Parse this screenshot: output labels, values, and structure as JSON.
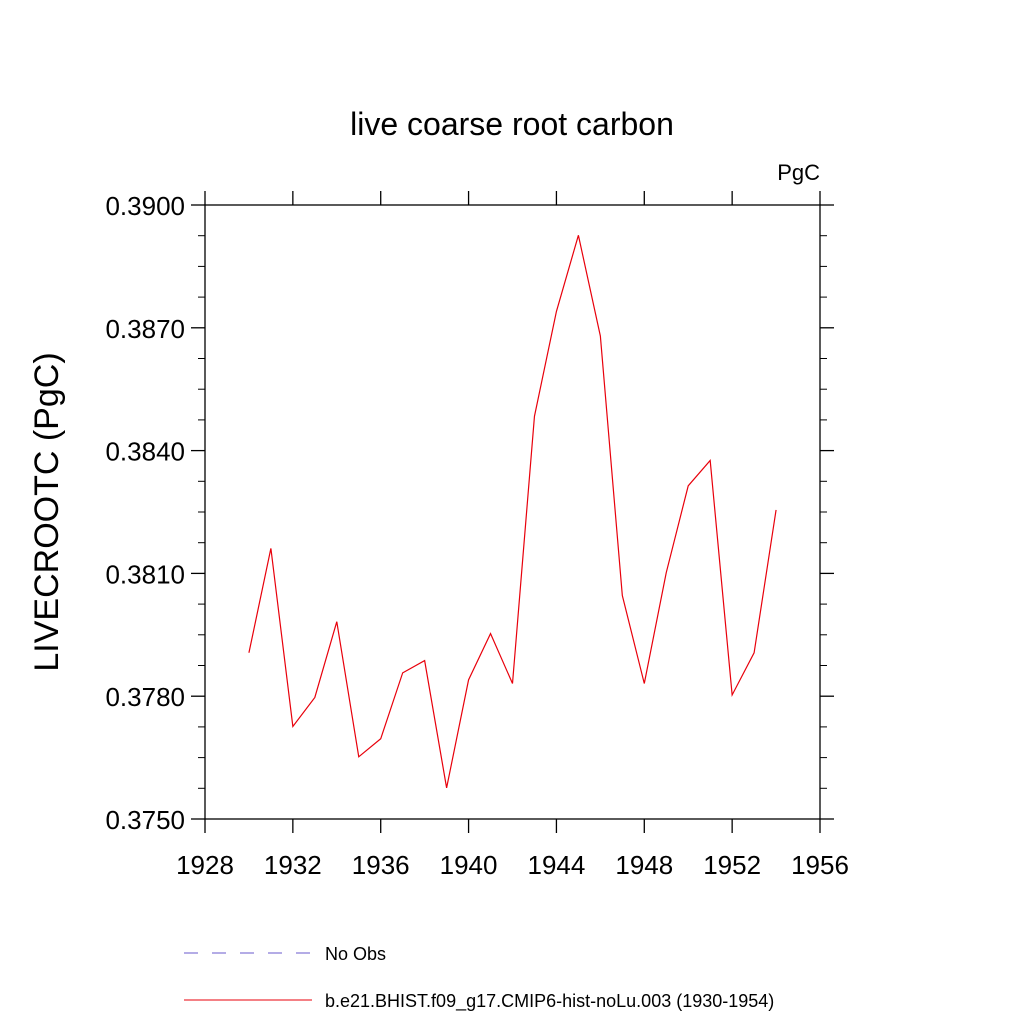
{
  "chart_data": {
    "type": "line",
    "title": "live coarse root carbon",
    "units_label": "PgC",
    "ylabel": "LIVECROOTC  (PgC)",
    "xlabel": "",
    "xlim": [
      1928,
      1956
    ],
    "ylim": [
      0.375,
      0.39
    ],
    "x_ticks": [
      "1928",
      "1932",
      "1936",
      "1940",
      "1944",
      "1948",
      "1952",
      "1956"
    ],
    "y_ticks": [
      "0.3750",
      "0.3780",
      "0.3810",
      "0.3840",
      "0.3870",
      "0.3900"
    ],
    "x_tick_values": [
      1928,
      1932,
      1936,
      1940,
      1944,
      1948,
      1952,
      1956
    ],
    "y_tick_values": [
      0.375,
      0.378,
      0.381,
      0.384,
      0.387,
      0.39
    ],
    "grid": false,
    "legend_position": "bottom",
    "series": [
      {
        "name": "No Obs",
        "color": "#6a5acd",
        "dash": "dashed",
        "x": [],
        "values": []
      },
      {
        "name": "b.e21.BHIST.f09_g17.CMIP6-hist-noLu.003 (1930-1954)",
        "color": "#e8000b",
        "dash": "solid",
        "x": [
          1930,
          1931,
          1932,
          1933,
          1934,
          1935,
          1936,
          1937,
          1938,
          1939,
          1940,
          1941,
          1942,
          1943,
          1944,
          1945,
          1946,
          1947,
          1948,
          1949,
          1950,
          1951,
          1952,
          1953,
          1954
        ],
        "values": [
          0.37906,
          0.38161,
          0.37726,
          0.37797,
          0.37982,
          0.37652,
          0.37696,
          0.37857,
          0.37887,
          0.37576,
          0.3784,
          0.37953,
          0.37831,
          0.38484,
          0.3874,
          0.38926,
          0.3868,
          0.38046,
          0.37831,
          0.38102,
          0.38314,
          0.38376,
          0.37803,
          0.37906,
          0.38255
        ]
      }
    ]
  }
}
